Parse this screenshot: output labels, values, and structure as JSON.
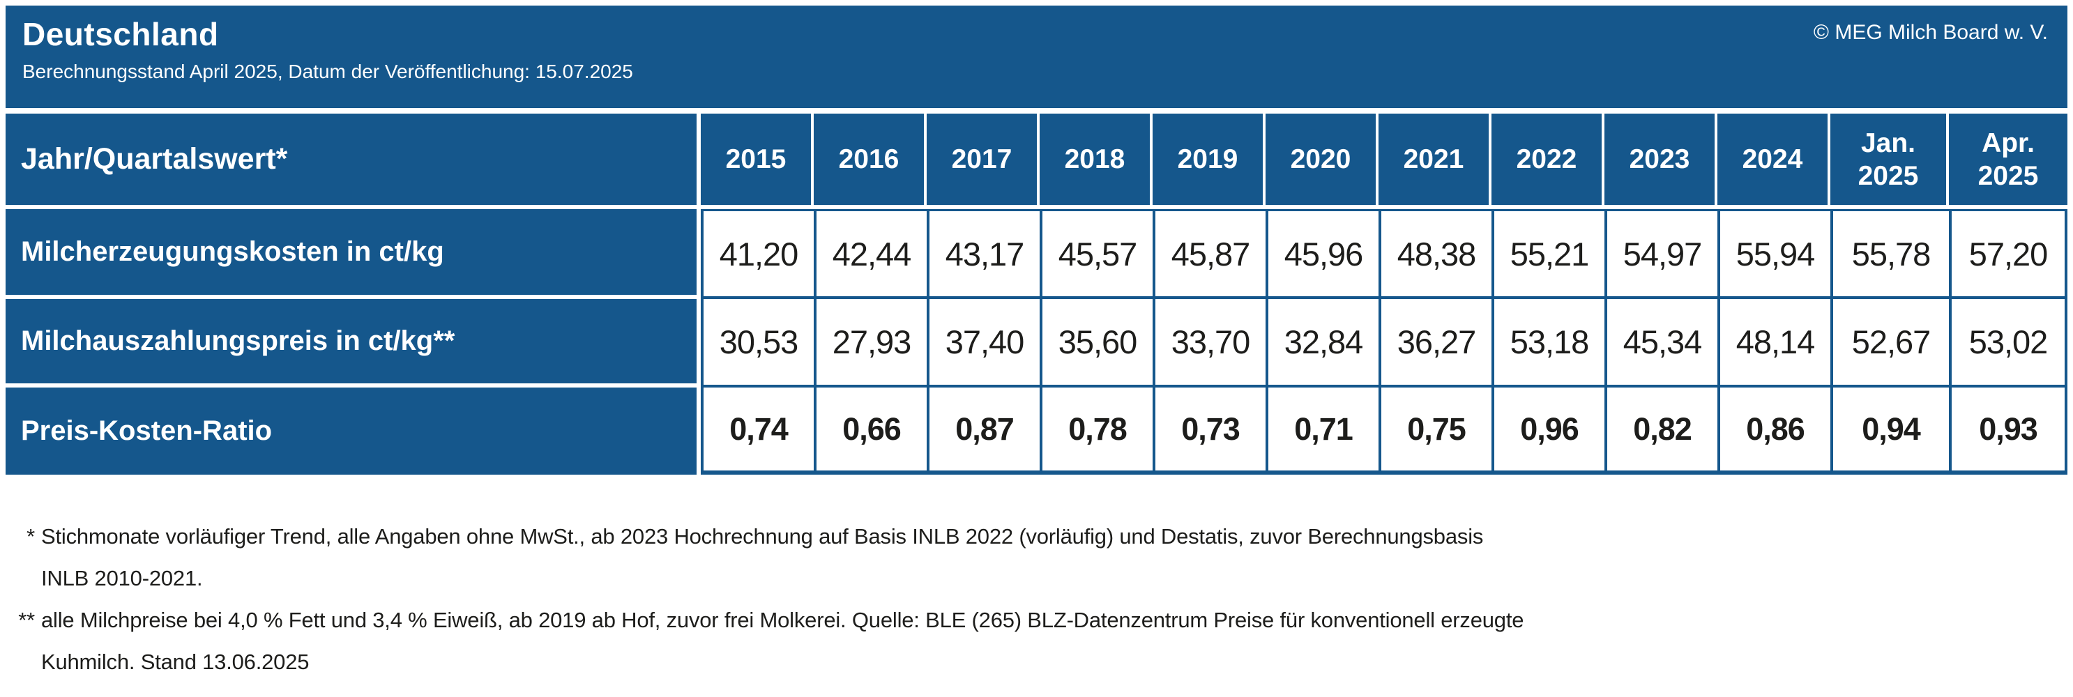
{
  "header": {
    "title": "Deutschland",
    "subtitle": "Berechnungsstand April 2025, Datum der Veröffentlichung: 15.07.2025",
    "copyright": "© MEG Milch Board w. V."
  },
  "colors": {
    "primary_blue": "#15578C",
    "text_dark": "#1D1D1B",
    "header_text": "#FFFFFF"
  },
  "table": {
    "corner_label": "Jahr/Quartalswert*",
    "columns": [
      "2015",
      "2016",
      "2017",
      "2018",
      "2019",
      "2020",
      "2021",
      "2022",
      "2023",
      "2024",
      "Jan. 2025",
      "Apr. 2025"
    ],
    "rows": [
      {
        "label": "Milcherzeugungskosten in ct/kg",
        "bold": false,
        "values": [
          "41,20",
          "42,44",
          "43,17",
          "45,57",
          "45,87",
          "45,96",
          "48,38",
          "55,21",
          "54,97",
          "55,94",
          "55,78",
          "57,20"
        ]
      },
      {
        "label": "Milchauszahlungspreis in ct/kg**",
        "bold": false,
        "values": [
          "30,53",
          "27,93",
          "37,40",
          "35,60",
          "33,70",
          "32,84",
          "36,27",
          "53,18",
          "45,34",
          "48,14",
          "52,67",
          "53,02"
        ]
      },
      {
        "label": "Preis-Kosten-Ratio",
        "bold": true,
        "values": [
          "0,74",
          "0,66",
          "0,87",
          "0,78",
          "0,73",
          "0,71",
          "0,75",
          "0,96",
          "0,82",
          "0,86",
          "0,94",
          "0,93"
        ]
      }
    ]
  },
  "footnotes": [
    {
      "marker": "*",
      "lines": [
        "Stichmonate vorläufiger Trend, alle Angaben ohne MwSt., ab 2023 Hochrechnung auf Basis INLB 2022 (vorläufig) und Destatis, zuvor Berechnungsbasis",
        "INLB 2010-2021."
      ]
    },
    {
      "marker": "**",
      "lines": [
        "alle Milchpreise bei 4,0 % Fett und 3,4 % Eiweiß, ab 2019 ab Hof, zuvor frei Molkerei. Quelle: BLE (265) BLZ-Datenzentrum Preise für konventionell erzeugte",
        "Kuhmilch. Stand 13.06.2025"
      ]
    }
  ],
  "chart_data": {
    "type": "table",
    "title": "Deutschland – Berechnungsstand April 2025, Datum der Veröffentlichung: 15.07.2025",
    "categories": [
      "2015",
      "2016",
      "2017",
      "2018",
      "2019",
      "2020",
      "2021",
      "2022",
      "2023",
      "2024",
      "Jan. 2025",
      "Apr. 2025"
    ],
    "series": [
      {
        "name": "Milcherzeugungskosten in ct/kg",
        "values": [
          41.2,
          42.44,
          43.17,
          45.57,
          45.87,
          45.96,
          48.38,
          55.21,
          54.97,
          55.94,
          55.78,
          57.2
        ]
      },
      {
        "name": "Milchauszahlungspreis in ct/kg",
        "values": [
          30.53,
          27.93,
          37.4,
          35.6,
          33.7,
          32.84,
          36.27,
          53.18,
          45.34,
          48.14,
          52.67,
          53.02
        ]
      },
      {
        "name": "Preis-Kosten-Ratio",
        "values": [
          0.74,
          0.66,
          0.87,
          0.78,
          0.73,
          0.71,
          0.75,
          0.96,
          0.82,
          0.86,
          0.94,
          0.93
        ]
      }
    ],
    "source": "© MEG Milch Board w. V."
  }
}
